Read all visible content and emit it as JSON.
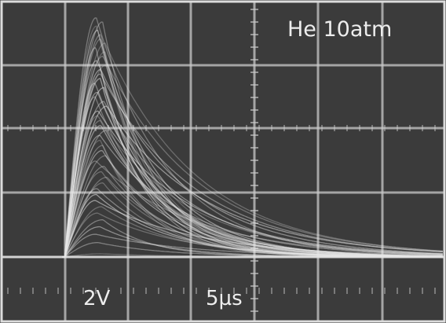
{
  "chart_data": {
    "type": "line",
    "title": "",
    "annotation": "He 10atm",
    "x_scale_label": "5µs",
    "y_scale_label": "2V",
    "x_per_division_us": 5,
    "y_per_division_V": 2,
    "x_range_us": [
      -5,
      30
    ],
    "y_range_V": [
      -2,
      8
    ],
    "grid": true,
    "graticule_divisions": {
      "x": 7,
      "y": 5
    },
    "traces": {
      "count": 46,
      "onset_us": 0,
      "peak_time_us": 2.8,
      "peak_amplitude_V_range": [
        0.1,
        7.5
      ],
      "baseline_V": 0,
      "decay_tau_us": 5.5
    }
  },
  "colors": {
    "screen": "#3b3b3b",
    "frame": "#dcdcdc",
    "grid": "#c9c9c9",
    "trace": "#e6e6e6",
    "text": "#ededed"
  }
}
